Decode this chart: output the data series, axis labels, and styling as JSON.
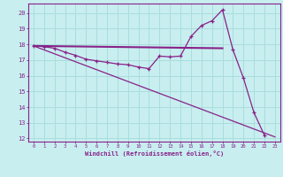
{
  "xlabel": "Windchill (Refroidissement éolien,°C)",
  "xlim": [
    -0.5,
    23.5
  ],
  "ylim": [
    11.8,
    20.6
  ],
  "yticks": [
    12,
    13,
    14,
    15,
    16,
    17,
    18,
    19,
    20
  ],
  "xticks": [
    0,
    1,
    2,
    3,
    4,
    5,
    6,
    7,
    8,
    9,
    10,
    11,
    12,
    13,
    14,
    15,
    16,
    17,
    18,
    19,
    20,
    21,
    22,
    23
  ],
  "background_color": "#c8eef0",
  "line_color": "#882288",
  "grid_color": "#aadddd",
  "line_flat": [
    [
      0,
      17.9
    ],
    [
      18,
      17.75
    ]
  ],
  "line_main": [
    [
      0,
      17.9
    ],
    [
      1,
      17.85
    ],
    [
      2,
      17.75
    ],
    [
      3,
      17.5
    ],
    [
      4,
      17.3
    ],
    [
      5,
      17.05
    ],
    [
      6,
      16.95
    ],
    [
      7,
      16.85
    ],
    [
      8,
      16.75
    ],
    [
      9,
      16.7
    ],
    [
      10,
      16.55
    ],
    [
      11,
      16.45
    ],
    [
      12,
      17.25
    ],
    [
      13,
      17.2
    ],
    [
      14,
      17.25
    ],
    [
      15,
      18.5
    ],
    [
      16,
      19.2
    ],
    [
      17,
      19.5
    ],
    [
      18,
      20.2
    ],
    [
      19,
      17.65
    ],
    [
      20,
      15.85
    ],
    [
      21,
      13.65
    ],
    [
      22,
      12.2
    ]
  ],
  "line_diag": [
    [
      0,
      17.9
    ],
    [
      23,
      12.1
    ]
  ]
}
